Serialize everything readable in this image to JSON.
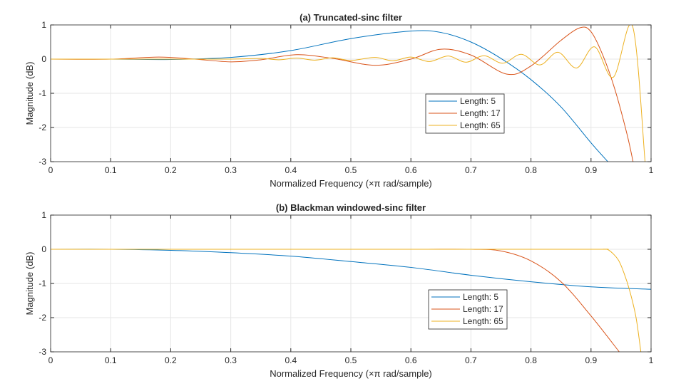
{
  "chart_data": [
    {
      "type": "line",
      "title": "(a) Truncated-sinc filter",
      "xlabel": "Normalized Frequency (×π rad/sample)",
      "ylabel": "Magnitude (dB)",
      "xlim": [
        0,
        1
      ],
      "ylim": [
        -3,
        1
      ],
      "xticks": [
        "0",
        "0.1",
        "0.2",
        "0.3",
        "0.4",
        "0.5",
        "0.6",
        "0.7",
        "0.8",
        "0.9",
        "1"
      ],
      "yticks": [
        "-3",
        "-2",
        "-1",
        "0",
        "1"
      ],
      "grid": true,
      "legend_position": "center-right",
      "series": [
        {
          "name": "Length: 5",
          "color": "#0072BD",
          "x": [
            0,
            0.1,
            0.2,
            0.3,
            0.4,
            0.5,
            0.6,
            0.65,
            0.7,
            0.75,
            0.8,
            0.85,
            0.9,
            0.928
          ],
          "y": [
            0,
            0,
            -0.01,
            0.05,
            0.25,
            0.6,
            0.82,
            0.78,
            0.5,
            0.02,
            -0.6,
            -1.4,
            -2.45,
            -3
          ]
        },
        {
          "name": "Length: 17",
          "color": "#D95319",
          "x": [
            0,
            0.1,
            0.18,
            0.24,
            0.3,
            0.35,
            0.41,
            0.47,
            0.54,
            0.6,
            0.65,
            0.7,
            0.76,
            0.8,
            0.85,
            0.882,
            0.9,
            0.92,
            0.94,
            0.96,
            0.97
          ],
          "y": [
            0,
            0,
            0.06,
            0,
            -0.08,
            -0.02,
            0.13,
            0.02,
            -0.18,
            0,
            0.29,
            0.12,
            -0.44,
            -0.2,
            0.55,
            0.92,
            0.8,
            0.1,
            -0.9,
            -2.2,
            -3
          ]
        },
        {
          "name": "Length: 65",
          "color": "#EDB120",
          "x": [
            0,
            0.1,
            0.2,
            0.3,
            0.35,
            0.38,
            0.41,
            0.44,
            0.47,
            0.5,
            0.54,
            0.57,
            0.6,
            0.631,
            0.662,
            0.692,
            0.722,
            0.753,
            0.784,
            0.815,
            0.845,
            0.876,
            0.906,
            0.937,
            0.969,
            0.99
          ],
          "y": [
            0,
            0,
            0,
            0,
            0.02,
            -0.02,
            0.03,
            -0.03,
            0.04,
            -0.04,
            0.05,
            -0.05,
            0.06,
            -0.07,
            0.09,
            -0.09,
            0.1,
            -0.12,
            0.14,
            -0.17,
            0.2,
            -0.26,
            0.36,
            -0.53,
            0.97,
            -3
          ]
        }
      ]
    },
    {
      "type": "line",
      "title": "(b) Blackman windowed-sinc filter",
      "xlabel": "Normalized Frequency (×π rad/sample)",
      "ylabel": "Magnitude (dB)",
      "xlim": [
        0,
        1
      ],
      "ylim": [
        -3,
        1
      ],
      "xticks": [
        "0",
        "0.1",
        "0.2",
        "0.3",
        "0.4",
        "0.5",
        "0.6",
        "0.7",
        "0.8",
        "0.9",
        "1"
      ],
      "yticks": [
        "-3",
        "-2",
        "-1",
        "0",
        "1"
      ],
      "grid": true,
      "legend_position": "center-right",
      "series": [
        {
          "name": "Length: 5",
          "color": "#0072BD",
          "x": [
            0,
            0.1,
            0.2,
            0.3,
            0.4,
            0.5,
            0.6,
            0.7,
            0.8,
            0.9,
            1
          ],
          "y": [
            0,
            0,
            -0.03,
            -0.1,
            -0.2,
            -0.36,
            -0.53,
            -0.76,
            -0.95,
            -1.1,
            -1.17
          ]
        },
        {
          "name": "Length: 17",
          "color": "#D95319",
          "x": [
            0,
            0.2,
            0.4,
            0.6,
            0.7,
            0.75,
            0.8,
            0.85,
            0.9,
            0.947
          ],
          "y": [
            0,
            0,
            0,
            0,
            0,
            -0.05,
            -0.34,
            -0.95,
            -1.95,
            -3
          ]
        },
        {
          "name": "Length: 65",
          "color": "#EDB120",
          "x": [
            0,
            0.3,
            0.6,
            0.9,
            0.92,
            0.93,
            0.945,
            0.955,
            0.965,
            0.975,
            0.983
          ],
          "y": [
            0,
            0,
            0,
            0,
            0,
            -0.03,
            -0.3,
            -0.7,
            -1.25,
            -2.0,
            -3
          ]
        }
      ]
    }
  ]
}
